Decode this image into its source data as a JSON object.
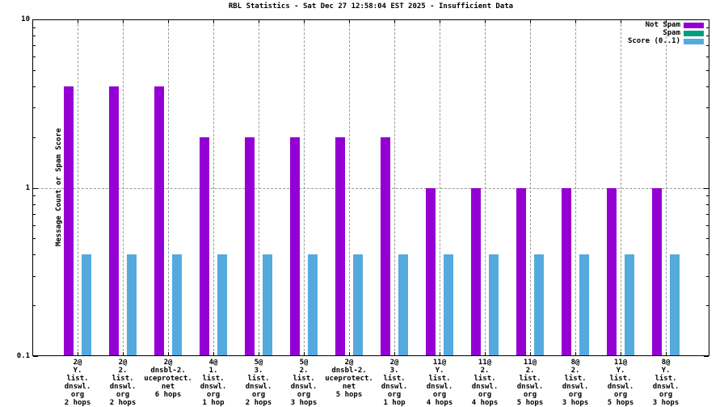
{
  "chart_data": {
    "type": "bar",
    "title": "RBL Statistics - Sat Dec 27 12:58:04 EST 2025 - Insufficient Data",
    "ylabel": "Message Count or Spam Score",
    "xlabel": "",
    "yscale": "log",
    "ylim": [
      0.1,
      10
    ],
    "yticks": [
      {
        "value": 10,
        "label": "10"
      },
      {
        "value": 1,
        "label": "1"
      },
      {
        "value": 0.1,
        "label": "0.1"
      }
    ],
    "grid": true,
    "legend_position": "top-right",
    "categories": [
      [
        "2@",
        "Y.",
        "list.",
        "dnswl.",
        "org",
        "2 hops"
      ],
      [
        "2@",
        "2.",
        "list.",
        "dnswl.",
        "org",
        "2 hops"
      ],
      [
        "2@",
        "dnsbl-2.",
        "uceprotect.",
        "net",
        "6 hops"
      ],
      [
        "4@",
        "1.",
        "list.",
        "dnswl.",
        "org",
        "1 hop"
      ],
      [
        "5@",
        "3.",
        "list.",
        "dnswl.",
        "org",
        "2 hops"
      ],
      [
        "5@",
        "2.",
        "list.",
        "dnswl.",
        "org",
        "3 hops"
      ],
      [
        "2@",
        "dnsbl-2.",
        "uceprotect.",
        "net",
        "5 hops"
      ],
      [
        "2@",
        "3.",
        "list.",
        "dnswl.",
        "org",
        "1 hop"
      ],
      [
        "11@",
        "Y.",
        "list.",
        "dnswl.",
        "org",
        "4 hops"
      ],
      [
        "11@",
        "2.",
        "list.",
        "dnswl.",
        "org",
        "4 hops"
      ],
      [
        "11@",
        "2.",
        "list.",
        "dnswl.",
        "org",
        "5 hops"
      ],
      [
        "8@",
        "2.",
        "list.",
        "dnswl.",
        "org",
        "3 hops"
      ],
      [
        "11@",
        "Y.",
        "list.",
        "dnswl.",
        "org",
        "5 hops"
      ],
      [
        "8@",
        "Y.",
        "list.",
        "dnswl.",
        "org",
        "3 hops"
      ]
    ],
    "series": [
      {
        "name": "Not Spam",
        "color": "#9400d3",
        "values": [
          4,
          4,
          4,
          2,
          2,
          2,
          2,
          2,
          1,
          1,
          1,
          1,
          1,
          1
        ]
      },
      {
        "name": "Spam",
        "color": "#009e80",
        "values": [
          0,
          0,
          0,
          0,
          0,
          0,
          0,
          0,
          0,
          0,
          0,
          0,
          0,
          0
        ]
      },
      {
        "name": "Score (0..1)",
        "color": "#55aadd",
        "values": [
          0.4,
          0.4,
          0.4,
          0.4,
          0.4,
          0.4,
          0.4,
          0.4,
          0.4,
          0.4,
          0.4,
          0.4,
          0.4,
          0.4
        ]
      }
    ]
  },
  "colors": {
    "background": "#ffffff",
    "border": "#000000",
    "grid": "#9a9a9a",
    "not_spam": "#9400d3",
    "spam": "#009e80",
    "score": "#55aadd"
  }
}
